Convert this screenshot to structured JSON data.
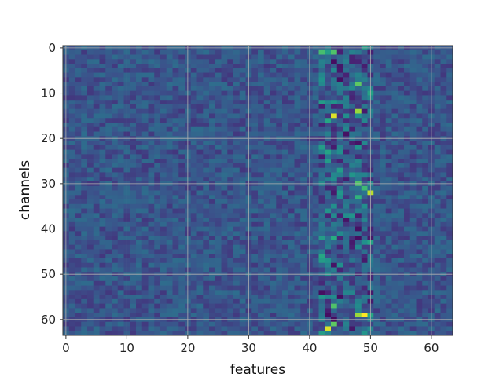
{
  "chart_data": {
    "type": "heatmap",
    "title": "",
    "xlabel": "features",
    "ylabel": "channels",
    "n_cols": 64,
    "n_rows": 64,
    "xlim": [
      -0.5,
      63.5
    ],
    "ylim": [
      63.5,
      -0.5
    ],
    "x_ticks": [
      0,
      10,
      20,
      30,
      40,
      50,
      60
    ],
    "y_ticks": [
      0,
      10,
      20,
      30,
      40,
      50,
      60
    ],
    "x_tick_labels": [
      "0",
      "10",
      "20",
      "30",
      "40",
      "50",
      "60"
    ],
    "y_tick_labels": [
      "0",
      "10",
      "20",
      "30",
      "40",
      "50",
      "60"
    ],
    "grid": true,
    "colormap": "viridis",
    "value_range": [
      0,
      1
    ],
    "background_value": 0.27,
    "hot_columns": [
      42,
      43,
      44,
      45,
      46,
      47,
      48,
      49,
      50
    ],
    "highlights": [
      {
        "row": 1,
        "col": 42,
        "value": 0.7
      },
      {
        "row": 1,
        "col": 43,
        "value": 0.55
      },
      {
        "row": 1,
        "col": 44,
        "value": 0.72
      },
      {
        "row": 0,
        "col": 49,
        "value": 0.55
      },
      {
        "row": 3,
        "col": 44,
        "value": 0.05
      },
      {
        "row": 4,
        "col": 45,
        "value": 0.08
      },
      {
        "row": 7,
        "col": 42,
        "value": 0.5
      },
      {
        "row": 7,
        "col": 45,
        "value": 0.05
      },
      {
        "row": 8,
        "col": 48,
        "value": 0.75
      },
      {
        "row": 10,
        "col": 50,
        "value": 0.58
      },
      {
        "row": 12,
        "col": 42,
        "value": 0.55
      },
      {
        "row": 14,
        "col": 48,
        "value": 0.85
      },
      {
        "row": 15,
        "col": 44,
        "value": 0.95
      },
      {
        "row": 16,
        "col": 43,
        "value": 0.6
      },
      {
        "row": 19,
        "col": 46,
        "value": 0.06
      },
      {
        "row": 21,
        "col": 48,
        "value": 0.07
      },
      {
        "row": 22,
        "col": 42,
        "value": 0.55
      },
      {
        "row": 23,
        "col": 43,
        "value": 0.58
      },
      {
        "row": 25,
        "col": 43,
        "value": 0.55
      },
      {
        "row": 27,
        "col": 45,
        "value": 0.55
      },
      {
        "row": 28,
        "col": 47,
        "value": 0.52
      },
      {
        "row": 30,
        "col": 48,
        "value": 0.72
      },
      {
        "row": 31,
        "col": 49,
        "value": 0.68
      },
      {
        "row": 32,
        "col": 50,
        "value": 0.9
      },
      {
        "row": 33,
        "col": 48,
        "value": 0.65
      },
      {
        "row": 36,
        "col": 43,
        "value": 0.52
      },
      {
        "row": 38,
        "col": 46,
        "value": 0.07
      },
      {
        "row": 40,
        "col": 48,
        "value": 0.06
      },
      {
        "row": 42,
        "col": 42,
        "value": 0.55
      },
      {
        "row": 42,
        "col": 44,
        "value": 0.62
      },
      {
        "row": 42,
        "col": 48,
        "value": 0.05
      },
      {
        "row": 43,
        "col": 50,
        "value": 0.58
      },
      {
        "row": 46,
        "col": 42,
        "value": 0.6
      },
      {
        "row": 47,
        "col": 42,
        "value": 0.55
      },
      {
        "row": 48,
        "col": 44,
        "value": 0.07
      },
      {
        "row": 50,
        "col": 43,
        "value": 0.5
      },
      {
        "row": 55,
        "col": 42,
        "value": 0.52
      },
      {
        "row": 57,
        "col": 44,
        "value": 0.72
      },
      {
        "row": 59,
        "col": 48,
        "value": 0.85
      },
      {
        "row": 59,
        "col": 49,
        "value": 1.0
      },
      {
        "row": 59,
        "col": 50,
        "value": 0.6
      },
      {
        "row": 61,
        "col": 44,
        "value": 0.75
      },
      {
        "row": 62,
        "col": 43,
        "value": 0.95
      },
      {
        "row": 62,
        "col": 47,
        "value": 0.08
      },
      {
        "row": 63,
        "col": 42,
        "value": 0.55
      }
    ]
  }
}
